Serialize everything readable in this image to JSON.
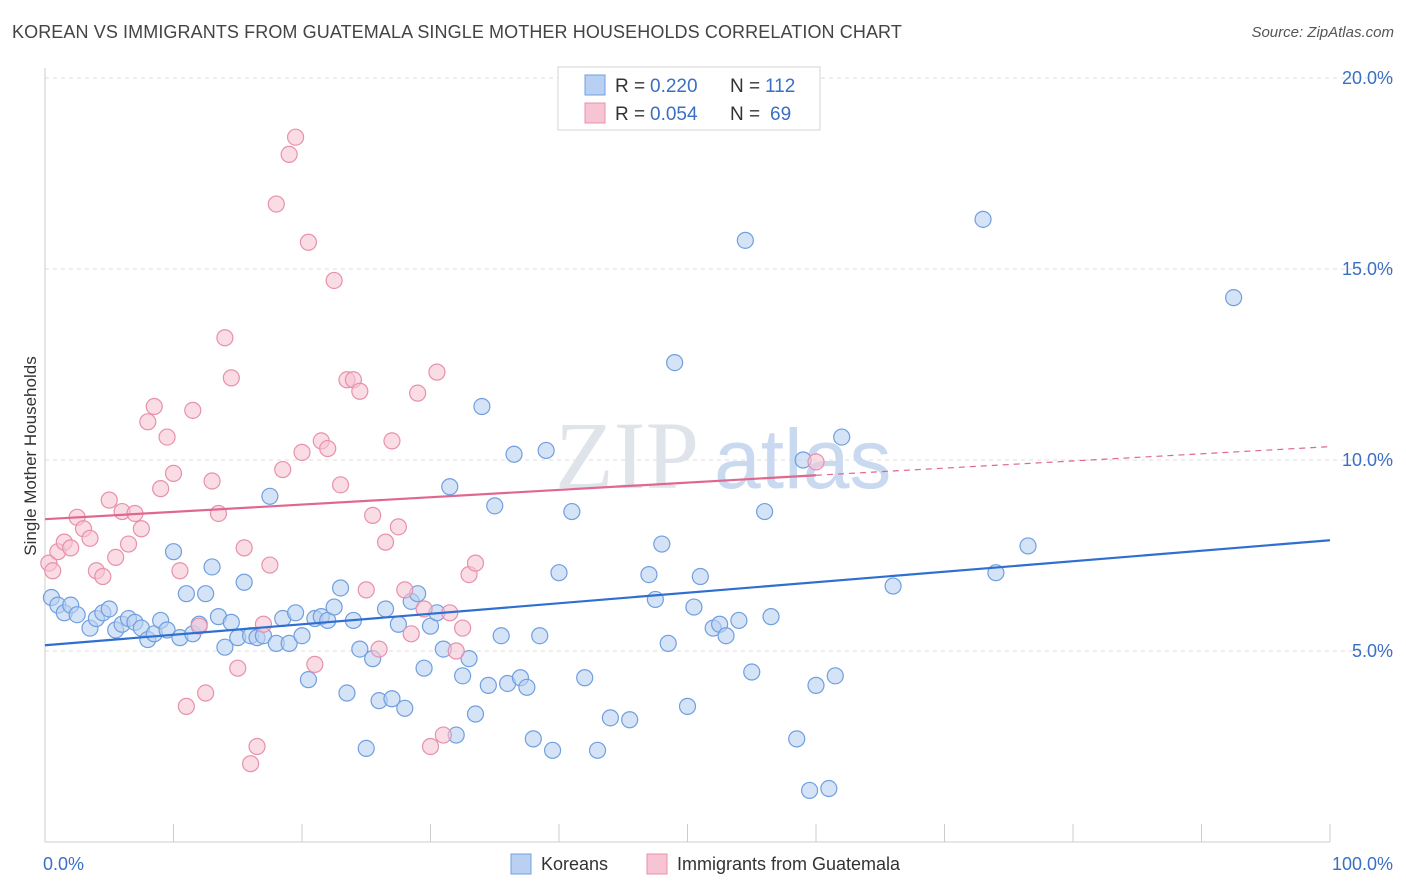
{
  "header": {
    "title": "KOREAN VS IMMIGRANTS FROM GUATEMALA SINGLE MOTHER HOUSEHOLDS CORRELATION CHART",
    "source": "Source: ZipAtlas.com"
  },
  "watermark": {
    "zip": "ZIP",
    "atlas": "atlas"
  },
  "chart_data": {
    "type": "scatter",
    "ylabel": "Single Mother Households",
    "xlim": [
      0,
      100
    ],
    "ylim": [
      0,
      20
    ],
    "x_tick_labels": [
      "0.0%",
      "100.0%"
    ],
    "y_ticks": [
      5,
      10,
      15,
      20
    ],
    "y_tick_labels": [
      "5.0%",
      "10.0%",
      "15.0%",
      "20.0%"
    ],
    "grid": true,
    "legend_position": "top-center",
    "legend": [
      {
        "r_label": "R =",
        "r_value": "0.220",
        "n_label": "N =",
        "n_value": "112"
      },
      {
        "r_label": "R =",
        "r_value": "0.054",
        "n_label": "N =",
        "n_value": "69"
      }
    ],
    "series": [
      {
        "name": "Koreans",
        "color": "#6f9fe0",
        "fill": "#b9d0f2",
        "trend_color": "#2f6fcf",
        "trend": {
          "x0": 0,
          "y0": 5.15,
          "x1": 100,
          "y1": 7.9
        },
        "points": [
          [
            0.5,
            6.4
          ],
          [
            1,
            6.2
          ],
          [
            1.5,
            6.0
          ],
          [
            2,
            6.2
          ],
          [
            2.5,
            5.95
          ],
          [
            3.5,
            5.6
          ],
          [
            4,
            5.85
          ],
          [
            4.5,
            6.0
          ],
          [
            5,
            6.1
          ],
          [
            5.5,
            5.55
          ],
          [
            6,
            5.7
          ],
          [
            6.5,
            5.85
          ],
          [
            7,
            5.75
          ],
          [
            7.5,
            5.6
          ],
          [
            8,
            5.3
          ],
          [
            8.5,
            5.45
          ],
          [
            9,
            5.8
          ],
          [
            9.5,
            5.55
          ],
          [
            10,
            7.6
          ],
          [
            10.5,
            5.35
          ],
          [
            11,
            6.5
          ],
          [
            11.5,
            5.45
          ],
          [
            12,
            5.7
          ],
          [
            12.5,
            6.5
          ],
          [
            13,
            7.2
          ],
          [
            13.5,
            5.9
          ],
          [
            14,
            5.1
          ],
          [
            14.5,
            5.75
          ],
          [
            15,
            5.35
          ],
          [
            15.5,
            6.8
          ],
          [
            16,
            5.4
          ],
          [
            16.5,
            5.35
          ],
          [
            17,
            5.4
          ],
          [
            17.5,
            9.05
          ],
          [
            18,
            5.2
          ],
          [
            18.5,
            5.85
          ],
          [
            19,
            5.2
          ],
          [
            19.5,
            6.0
          ],
          [
            20,
            5.4
          ],
          [
            20.5,
            4.25
          ],
          [
            21,
            5.85
          ],
          [
            21.5,
            5.9
          ],
          [
            22,
            5.8
          ],
          [
            22.5,
            6.15
          ],
          [
            23,
            6.65
          ],
          [
            23.5,
            3.9
          ],
          [
            24,
            5.8
          ],
          [
            24.5,
            5.05
          ],
          [
            25,
            2.45
          ],
          [
            25.5,
            4.8
          ],
          [
            26,
            3.7
          ],
          [
            26.5,
            6.1
          ],
          [
            27,
            3.75
          ],
          [
            27.5,
            5.7
          ],
          [
            28,
            3.5
          ],
          [
            28.5,
            6.3
          ],
          [
            29,
            6.5
          ],
          [
            29.5,
            4.55
          ],
          [
            30,
            5.65
          ],
          [
            30.5,
            6.0
          ],
          [
            31,
            5.05
          ],
          [
            31.5,
            9.3
          ],
          [
            32,
            2.8
          ],
          [
            32.5,
            4.35
          ],
          [
            33,
            4.8
          ],
          [
            33.5,
            3.35
          ],
          [
            34,
            11.4
          ],
          [
            34.5,
            4.1
          ],
          [
            35,
            8.8
          ],
          [
            35.5,
            5.4
          ],
          [
            36,
            4.15
          ],
          [
            36.5,
            10.15
          ],
          [
            37,
            4.3
          ],
          [
            37.5,
            4.05
          ],
          [
            38,
            2.7
          ],
          [
            38.5,
            5.4
          ],
          [
            39,
            10.25
          ],
          [
            39.5,
            2.4
          ],
          [
            40,
            7.05
          ],
          [
            41,
            8.65
          ],
          [
            42,
            4.3
          ],
          [
            43,
            2.4
          ],
          [
            44,
            3.25
          ],
          [
            45.5,
            3.2
          ],
          [
            47,
            7.0
          ],
          [
            47.5,
            6.35
          ],
          [
            48,
            7.8
          ],
          [
            48.5,
            5.2
          ],
          [
            49,
            12.55
          ],
          [
            50,
            3.55
          ],
          [
            50.5,
            6.15
          ],
          [
            51,
            6.95
          ],
          [
            52,
            5.6
          ],
          [
            52.5,
            5.7
          ],
          [
            53,
            5.4
          ],
          [
            54,
            5.8
          ],
          [
            54.5,
            15.75
          ],
          [
            55,
            4.45
          ],
          [
            56,
            8.65
          ],
          [
            56.5,
            5.9
          ],
          [
            58.5,
            2.7
          ],
          [
            59,
            10.0
          ],
          [
            59.5,
            1.35
          ],
          [
            60,
            4.1
          ],
          [
            61,
            1.4
          ],
          [
            62,
            10.6
          ],
          [
            61.5,
            4.35
          ],
          [
            66,
            6.7
          ],
          [
            73,
            16.3
          ],
          [
            74,
            7.05
          ],
          [
            76.5,
            7.75
          ],
          [
            92.5,
            14.25
          ]
        ]
      },
      {
        "name": "Immigrants from Guatemala",
        "color": "#e890ac",
        "fill": "#f7c4d3",
        "trend_color": "#e0688e",
        "trend": {
          "x0": 0,
          "y0": 8.45,
          "x1": 60,
          "y1": 9.6,
          "dash_x1": 100,
          "dash_y1": 10.35
        },
        "points": [
          [
            0.3,
            7.3
          ],
          [
            0.6,
            7.1
          ],
          [
            1,
            7.6
          ],
          [
            1.5,
            7.85
          ],
          [
            2,
            7.7
          ],
          [
            2.5,
            8.5
          ],
          [
            3,
            8.2
          ],
          [
            3.5,
            7.95
          ],
          [
            4,
            7.1
          ],
          [
            4.5,
            6.95
          ],
          [
            5,
            8.95
          ],
          [
            5.5,
            7.45
          ],
          [
            6,
            8.65
          ],
          [
            6.5,
            7.8
          ],
          [
            7,
            8.6
          ],
          [
            7.5,
            8.2
          ],
          [
            8,
            11.0
          ],
          [
            8.5,
            11.4
          ],
          [
            9,
            9.25
          ],
          [
            9.5,
            10.6
          ],
          [
            10,
            9.65
          ],
          [
            10.5,
            7.1
          ],
          [
            11,
            3.55
          ],
          [
            11.5,
            11.3
          ],
          [
            12,
            5.65
          ],
          [
            12.5,
            3.9
          ],
          [
            13,
            9.45
          ],
          [
            13.5,
            8.6
          ],
          [
            14,
            13.2
          ],
          [
            14.5,
            12.15
          ],
          [
            15,
            4.55
          ],
          [
            15.5,
            7.7
          ],
          [
            16,
            2.05
          ],
          [
            16.5,
            2.5
          ],
          [
            17,
            5.7
          ],
          [
            17.5,
            7.25
          ],
          [
            18,
            16.7
          ],
          [
            18.5,
            9.75
          ],
          [
            19,
            18.0
          ],
          [
            19.5,
            18.45
          ],
          [
            20,
            10.2
          ],
          [
            20.5,
            15.7
          ],
          [
            21,
            4.65
          ],
          [
            21.5,
            10.5
          ],
          [
            22,
            10.3
          ],
          [
            22.5,
            14.7
          ],
          [
            23,
            9.35
          ],
          [
            23.5,
            12.1
          ],
          [
            24,
            12.1
          ],
          [
            24.5,
            11.8
          ],
          [
            25,
            6.6
          ],
          [
            25.5,
            8.55
          ],
          [
            26,
            5.05
          ],
          [
            26.5,
            7.85
          ],
          [
            27,
            10.5
          ],
          [
            27.5,
            8.25
          ],
          [
            28,
            6.6
          ],
          [
            28.5,
            5.45
          ],
          [
            29,
            11.75
          ],
          [
            29.5,
            6.1
          ],
          [
            30,
            2.5
          ],
          [
            30.5,
            12.3
          ],
          [
            31,
            2.8
          ],
          [
            31.5,
            6.0
          ],
          [
            32,
            5.0
          ],
          [
            32.5,
            5.6
          ],
          [
            33,
            7.0
          ],
          [
            33.5,
            7.3
          ],
          [
            60,
            9.95
          ]
        ]
      }
    ]
  },
  "bottom_legend": {
    "items": [
      {
        "label": "Koreans"
      },
      {
        "label": "Immigrants from Guatemala"
      }
    ]
  }
}
